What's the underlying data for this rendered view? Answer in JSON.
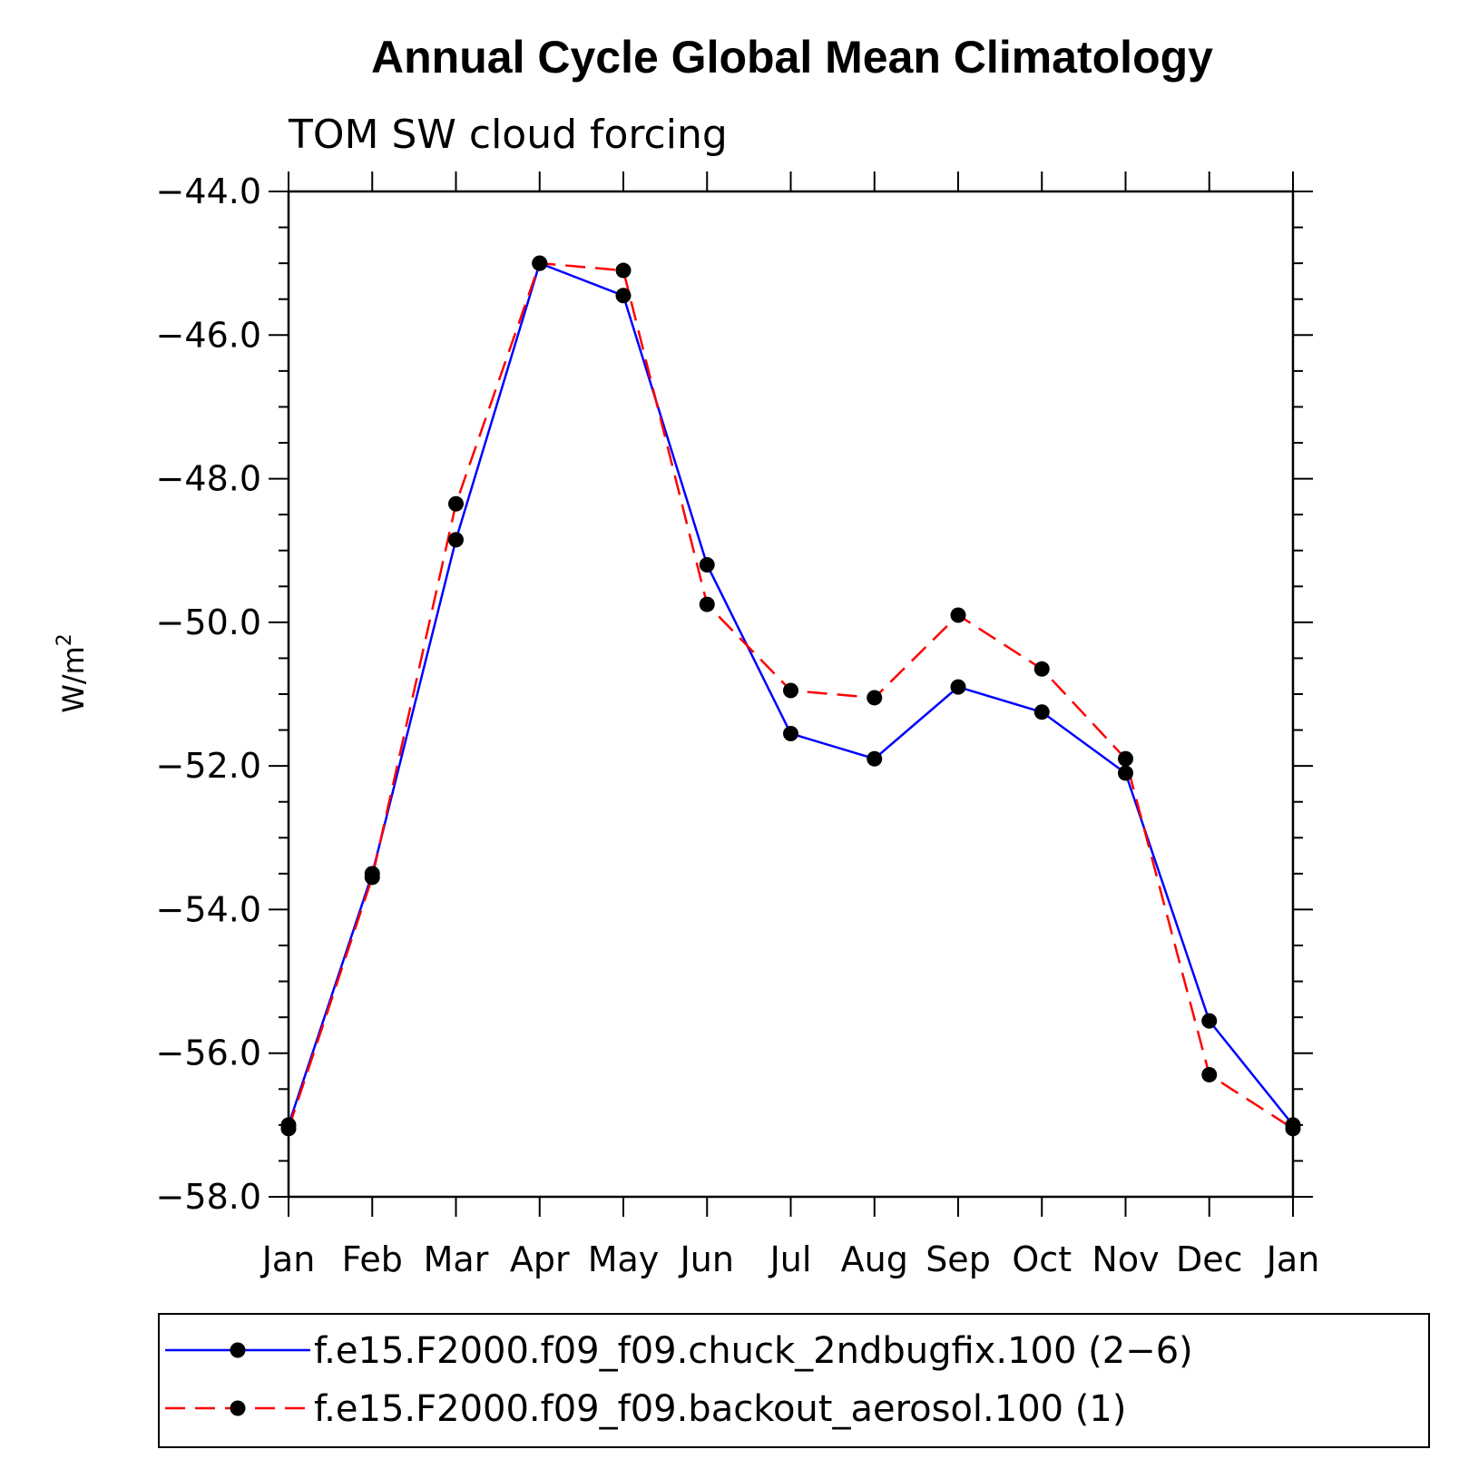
{
  "chart_data": {
    "type": "line",
    "title": "Annual Cycle Global Mean Climatology",
    "subtitle": "TOM SW cloud forcing",
    "xlabel": "",
    "ylabel": "W/m",
    "ylabel_superscript": "2",
    "categories": [
      "Jan",
      "Feb",
      "Mar",
      "Apr",
      "May",
      "Jun",
      "Jul",
      "Aug",
      "Sep",
      "Oct",
      "Nov",
      "Dec",
      "Jan"
    ],
    "ylim": [
      -58.0,
      -44.0
    ],
    "yticks": [
      "-44.0",
      "-46.0",
      "-48.0",
      "-50.0",
      "-52.0",
      "-54.0",
      "-56.0",
      "-58.0"
    ],
    "series": [
      {
        "name": "f.e15.F2000.f09_f09.chuck_2ndbugfix.100 (2-6)",
        "color": "#0000ff",
        "dash": "solid",
        "values": [
          -57.0,
          -53.5,
          -48.85,
          -45.0,
          -45.45,
          -49.2,
          -51.55,
          -51.9,
          -50.9,
          -51.25,
          -52.1,
          -55.55,
          -57.0
        ]
      },
      {
        "name": "f.e15.F2000.f09_f09.backout_aerosol.100 (1)",
        "color": "#ff0000",
        "dash": "dashed",
        "values": [
          -57.05,
          -53.55,
          -48.35,
          -45.0,
          -45.1,
          -49.75,
          -50.95,
          -51.05,
          -49.9,
          -50.65,
          -51.9,
          -56.3,
          -57.05
        ]
      }
    ],
    "marker_color": "#000000",
    "legend_position": "bottom"
  }
}
